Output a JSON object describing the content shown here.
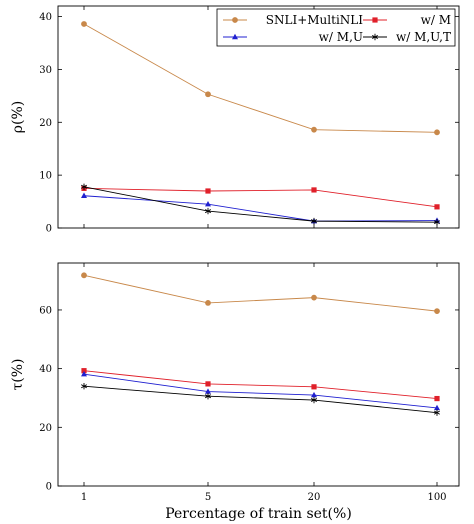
{
  "chart_data": [
    {
      "type": "line",
      "x": [
        "1",
        "5",
        "20",
        "100"
      ],
      "xlabel": "",
      "ylabel": "ρ(%)",
      "ylim": [
        0,
        42
      ],
      "yticks": [
        0,
        10,
        20,
        30,
        40
      ],
      "grid": false,
      "legend": {
        "placement": "top-right",
        "entries": [
          "SNLI+MultiNLI",
          "w/ M",
          "w/ M,U",
          "w/ M,U,T"
        ]
      },
      "series": [
        {
          "name": "SNLI+MultiNLI",
          "values": [
            38.6,
            25.3,
            18.6,
            18.1
          ],
          "color": "#c8884a",
          "marker": "circle"
        },
        {
          "name": "w/ M",
          "values": [
            7.5,
            7.0,
            7.2,
            4.0
          ],
          "color": "#e0202a",
          "marker": "square"
        },
        {
          "name": "w/ M,U",
          "values": [
            6.1,
            4.5,
            1.3,
            1.4
          ],
          "color": "#2020d0",
          "marker": "triangle"
        },
        {
          "name": "w/ M,U,T",
          "values": [
            7.8,
            3.2,
            1.3,
            1.1
          ],
          "color": "#000000",
          "marker": "star"
        }
      ]
    },
    {
      "type": "line",
      "x": [
        "1",
        "5",
        "20",
        "100"
      ],
      "xlabel": "Percentage of train set(%)",
      "ylabel": "τ(%)",
      "ylim": [
        0,
        76
      ],
      "yticks": [
        0,
        20,
        40,
        60
      ],
      "grid": false,
      "series": [
        {
          "name": "SNLI+MultiNLI",
          "values": [
            71.8,
            62.4,
            64.2,
            59.6
          ],
          "color": "#c8884a",
          "marker": "circle"
        },
        {
          "name": "w/ M",
          "values": [
            39.3,
            34.8,
            33.8,
            29.8
          ],
          "color": "#e0202a",
          "marker": "square"
        },
        {
          "name": "w/ M,U",
          "values": [
            38.1,
            32.2,
            31.0,
            26.6
          ],
          "color": "#2020d0",
          "marker": "triangle"
        },
        {
          "name": "w/ M,U,T",
          "values": [
            34.0,
            30.6,
            29.3,
            25.0
          ],
          "color": "#000000",
          "marker": "star"
        }
      ]
    }
  ]
}
